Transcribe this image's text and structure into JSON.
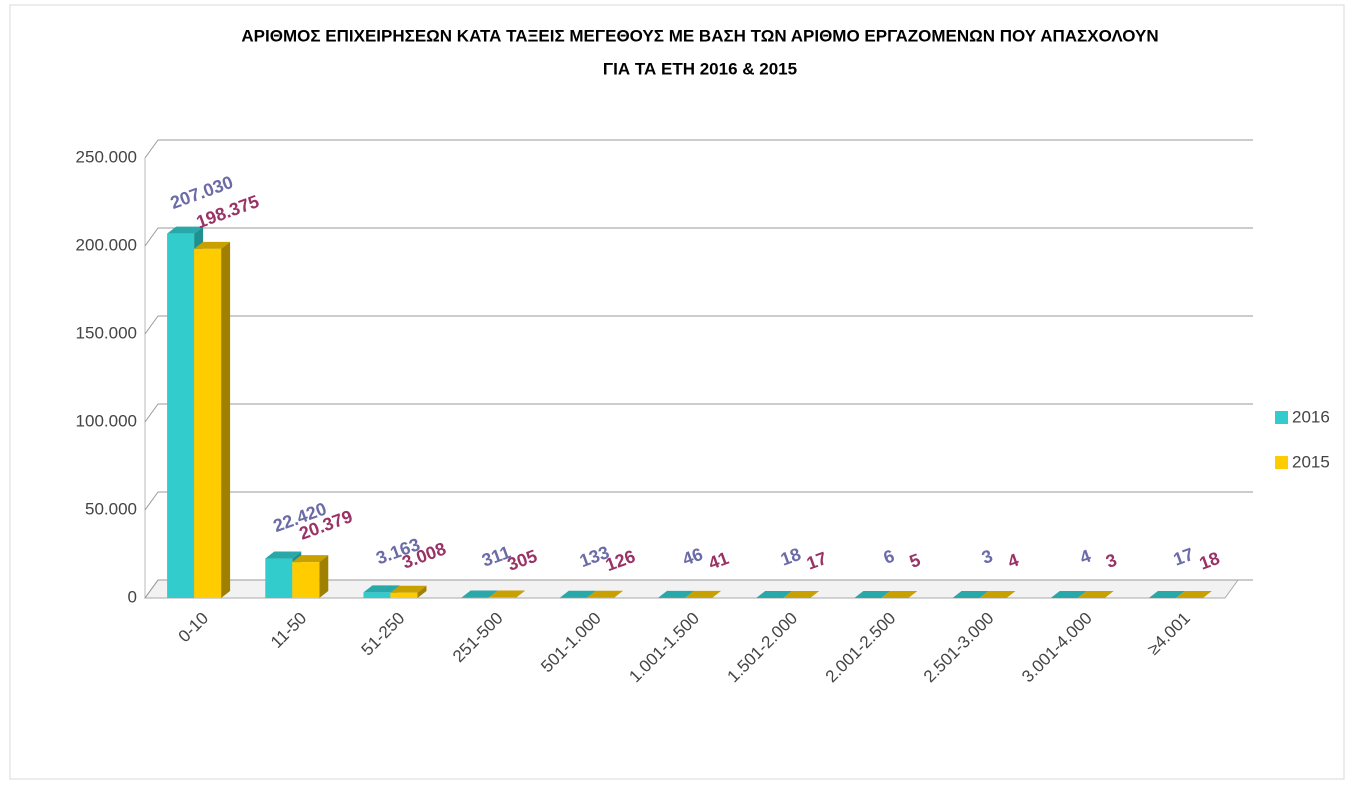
{
  "chart_data": {
    "type": "bar3d",
    "title": [
      "ΑΡΙΘΜΟΣ ΕΠΙΧΕΙΡΗΣΕΩΝ ΚΑΤΑ ΤΑΞΕΙΣ ΜΕΓΕΘΟΥΣ ΜΕ ΒΑΣΗ ΤΩΝ ΑΡΙΘΜΟ ΕΡΓΑΖΟΜΕΝΩΝ ΠΟΥ ΑΠΑΣΧΟΛΟΥΝ",
      "ΓΙΑ ΤΑ ΕΤΗ 2016 & 2015"
    ],
    "categories": [
      "0-10",
      "11-50",
      "51-250",
      "251-500",
      "501-1.000",
      "1.001-1.500",
      "1.501-2.000",
      "2.001-2.500",
      "2.501-3.000",
      "3.001-4.000",
      "≥4.001"
    ],
    "series": [
      {
        "name": "2016",
        "color": "#33cccc",
        "side": "#1f8f8f",
        "top": "#28a8a8",
        "label_color": "#6b6ba8",
        "values": [
          207030,
          22420,
          3163,
          311,
          133,
          46,
          18,
          6,
          3,
          4,
          17
        ],
        "value_labels": [
          "207.030",
          "22.420",
          "3.163",
          "311",
          "133",
          "46",
          "18",
          "6",
          "3",
          "4",
          "17"
        ]
      },
      {
        "name": "2015",
        "color": "#ffcc00",
        "side": "#a08000",
        "top": "#c8a000",
        "label_color": "#993366",
        "values": [
          198375,
          20379,
          3008,
          305,
          126,
          41,
          17,
          5,
          4,
          3,
          18
        ],
        "value_labels": [
          "198.375",
          "20.379",
          "3.008",
          "305",
          "126",
          "41",
          "17",
          "5",
          "4",
          "3",
          "18"
        ]
      }
    ],
    "ylim": [
      0,
      250000
    ],
    "yticks": [
      0,
      {
        "value": 50000,
        "label": "50.000"
      },
      {
        "value": 100000,
        "label": "100.000"
      },
      {
        "value": 150000,
        "label": "150.000"
      },
      {
        "value": 200000,
        "label": "200.000"
      },
      {
        "value": 250000,
        "label": "250.000"
      }
    ],
    "grid": true,
    "legend": "right"
  }
}
